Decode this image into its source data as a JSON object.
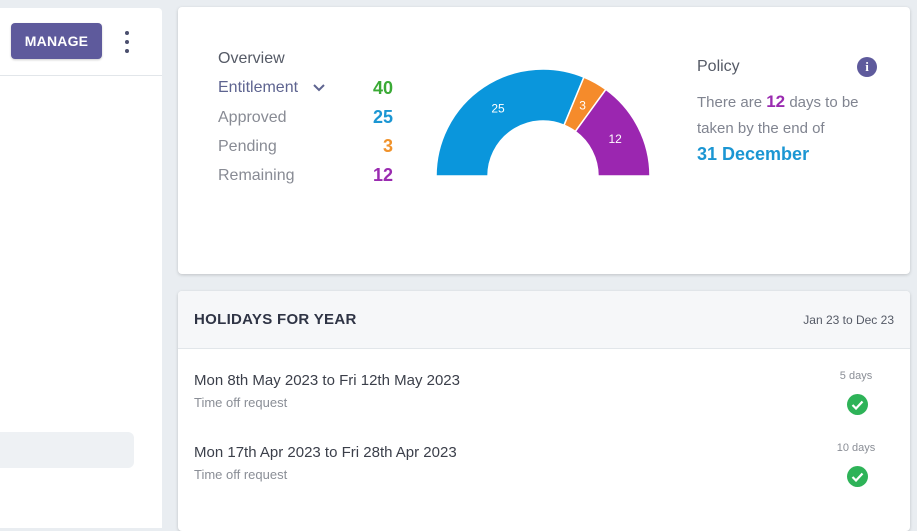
{
  "left": {
    "manage_label": "MANAGE"
  },
  "overview": {
    "title": "Overview",
    "rows": [
      {
        "label": "Entitlement",
        "value": "40",
        "color": "#3aaa35"
      },
      {
        "label": "Approved",
        "value": "25",
        "color": "#1b96d3"
      },
      {
        "label": "Pending",
        "value": "3",
        "color": "#f0922b"
      },
      {
        "label": "Remaining",
        "value": "12",
        "color": "#9a2bb0"
      }
    ]
  },
  "chart_data": {
    "type": "pie",
    "subtype": "half-donut",
    "total": 40,
    "slices": [
      {
        "label": "25",
        "value": 25,
        "color": "#0a96dc"
      },
      {
        "label": "3",
        "value": 3,
        "color": "#f58b2b"
      },
      {
        "label": "12",
        "value": 12,
        "color": "#9b26b0"
      }
    ]
  },
  "policy": {
    "title": "Policy",
    "text_before": "There are",
    "days": "12",
    "text_after": "days to be taken by the end of",
    "date": "31 December",
    "icon": "info-icon"
  },
  "holidays": {
    "title": "HOLIDAYS FOR YEAR",
    "range": "Jan 23 to Dec 23",
    "items": [
      {
        "dates": "Mon 8th May 2023 to Fri 12th May 2023",
        "type": "Time off request",
        "days": "5 days",
        "status": "approved"
      },
      {
        "dates": "Mon 17th Apr 2023 to Fri 28th Apr 2023",
        "type": "Time off request",
        "days": "10 days",
        "status": "approved"
      }
    ]
  }
}
